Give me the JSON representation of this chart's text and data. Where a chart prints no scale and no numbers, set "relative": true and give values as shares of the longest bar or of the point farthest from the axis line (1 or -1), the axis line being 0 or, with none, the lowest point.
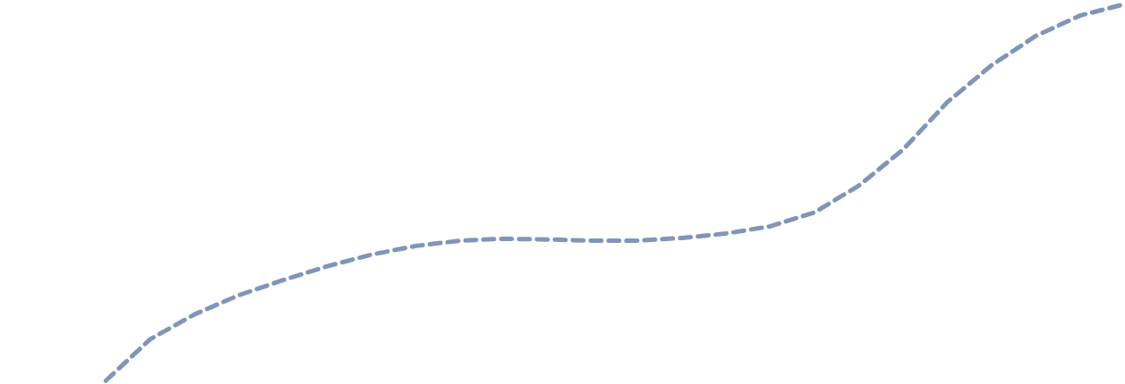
{
  "chart_data": {
    "type": "line",
    "relative": true,
    "line_style": "dashed",
    "categories": [
      null,
      null,
      null,
      null,
      null,
      null,
      null,
      null,
      null,
      null,
      null,
      null,
      null,
      null,
      null,
      null,
      null,
      null,
      null,
      null,
      null,
      null,
      null,
      null
    ],
    "series": [
      {
        "color": "#8096b8",
        "values": [
          0,
          0.11,
          0.176,
          0.227,
          0.267,
          0.304,
          0.335,
          0.358,
          0.372,
          0.377,
          0.375,
          0.372,
          0.372,
          0.379,
          0.391,
          0.41,
          0.447,
          0.518,
          0.614,
          0.74,
          0.838,
          0.916,
          0.97,
          1.0
        ]
      }
    ]
  }
}
